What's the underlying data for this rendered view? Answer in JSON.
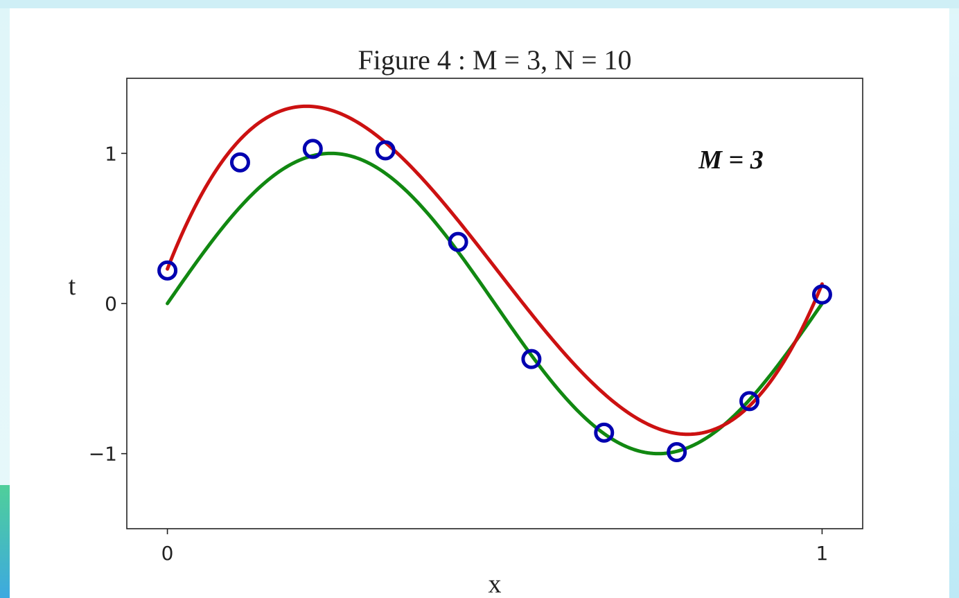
{
  "chart_data": {
    "type": "line",
    "title": "Figure 4 : M = 3, N = 10",
    "xlabel": "x",
    "ylabel": "t",
    "xlim": [
      -0.062,
      1.062
    ],
    "ylim": [
      -1.5,
      1.5
    ],
    "xticks": [
      0,
      1
    ],
    "xtick_labels": [
      "0",
      "1"
    ],
    "yticks": [
      -1,
      0,
      1
    ],
    "ytick_labels": [
      "−1",
      "0",
      "1"
    ],
    "annotation": "M = 3",
    "grid": false,
    "series": [
      {
        "kind": "scatter",
        "marker": "open-circle",
        "color": "#0000b0",
        "x": [
          0.0,
          0.111,
          0.222,
          0.333,
          0.444,
          0.556,
          0.667,
          0.778,
          0.889,
          1.0
        ],
        "y": [
          0.22,
          0.94,
          1.03,
          1.02,
          0.41,
          -0.37,
          -0.86,
          -0.99,
          -0.65,
          0.06
        ]
      },
      {
        "kind": "line",
        "function": "sin(2*pi*x)",
        "color": "#118811",
        "x_range": [
          0,
          1
        ]
      },
      {
        "kind": "line",
        "function": "cubic polynomial fit",
        "color": "#cc1111",
        "coefficients": [
          0.23,
          11.2,
          -33.4,
          22.1
        ],
        "x_range": [
          0,
          1
        ]
      }
    ]
  }
}
